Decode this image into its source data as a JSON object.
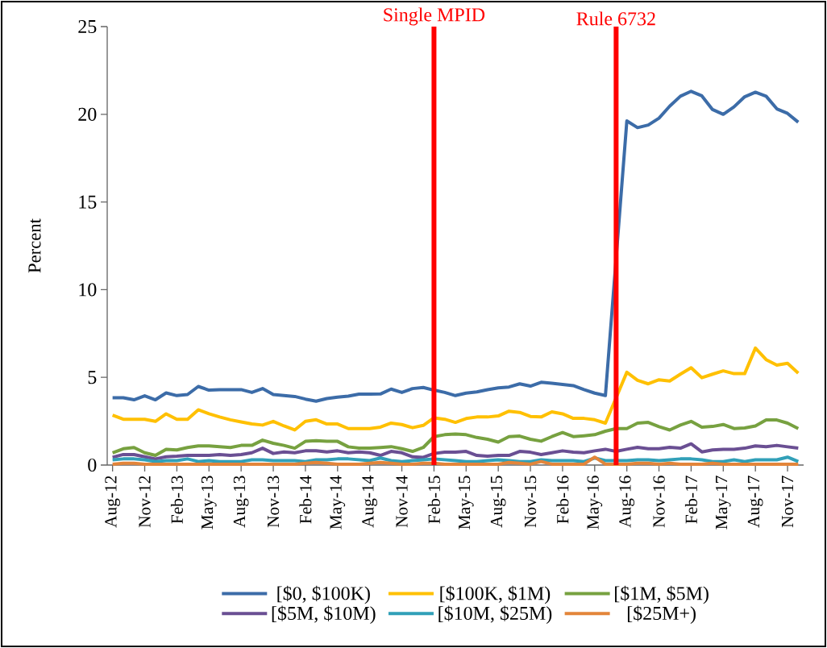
{
  "chart_data": {
    "type": "line",
    "ylabel": "Percent",
    "legend": "bottom",
    "line_style": "solid",
    "x": [
      "2012-08",
      "2012-09",
      "2012-10",
      "2012-11",
      "2012-12",
      "2013-01",
      "2013-02",
      "2013-03",
      "2013-04",
      "2013-05",
      "2013-06",
      "2013-07",
      "2013-08",
      "2013-09",
      "2013-10",
      "2013-11",
      "2013-12",
      "2014-01",
      "2014-02",
      "2014-03",
      "2014-04",
      "2014-05",
      "2014-06",
      "2014-07",
      "2014-08",
      "2014-09",
      "2014-10",
      "2014-11",
      "2014-12",
      "2015-01",
      "2015-02",
      "2015-03",
      "2015-04",
      "2015-05",
      "2015-06",
      "2015-07",
      "2015-08",
      "2015-09",
      "2015-10",
      "2015-11",
      "2015-12",
      "2016-01",
      "2016-02",
      "2016-03",
      "2016-04",
      "2016-05",
      "2016-06",
      "2016-07",
      "2016-08",
      "2016-09",
      "2016-10",
      "2016-11",
      "2016-12",
      "2017-01",
      "2017-02",
      "2017-03",
      "2017-04",
      "2017-05",
      "2017-06",
      "2017-07",
      "2017-08",
      "2017-09",
      "2017-10",
      "2017-11",
      "2017-12"
    ],
    "xlim": [
      "2012-07-16",
      "2017-12-16"
    ],
    "xticks": [
      {
        "value": "2012-08",
        "label": "Aug-12"
      },
      {
        "value": "2012-11",
        "label": "Nov-12"
      },
      {
        "value": "2013-02",
        "label": "Feb-13"
      },
      {
        "value": "2013-05",
        "label": "May-13"
      },
      {
        "value": "2013-08",
        "label": "Aug-13"
      },
      {
        "value": "2013-11",
        "label": "Nov-13"
      },
      {
        "value": "2014-02",
        "label": "Feb-14"
      },
      {
        "value": "2014-05",
        "label": "May-14"
      },
      {
        "value": "2014-08",
        "label": "Aug-14"
      },
      {
        "value": "2014-11",
        "label": "Nov-14"
      },
      {
        "value": "2015-02",
        "label": "Feb-15"
      },
      {
        "value": "2015-05",
        "label": "May-15"
      },
      {
        "value": "2015-08",
        "label": "Aug-15"
      },
      {
        "value": "2015-11",
        "label": "Nov-15"
      },
      {
        "value": "2016-02",
        "label": "Feb-16"
      },
      {
        "value": "2016-05",
        "label": "May-16"
      },
      {
        "value": "2016-08",
        "label": "Aug-16"
      },
      {
        "value": "2016-11",
        "label": "Nov-16"
      },
      {
        "value": "2017-02",
        "label": "Feb-17"
      },
      {
        "value": "2017-05",
        "label": "May-17"
      },
      {
        "value": "2017-08",
        "label": "Aug-17"
      },
      {
        "value": "2017-11",
        "label": "Nov-17"
      }
    ],
    "ylim": [
      0,
      25
    ],
    "yticks": [
      0,
      5,
      10,
      15,
      20,
      25
    ],
    "ref_lines": [
      {
        "axis": "x",
        "value": "2015-02",
        "label": "Single MPID",
        "color": "#ff0000"
      },
      {
        "axis": "x",
        "value": "2016-07",
        "label": "Rule 6732",
        "color": "#ff0000"
      }
    ],
    "series": [
      {
        "name": "[$0, $100K)",
        "color": "#3c6ca8",
        "values": [
          3.84,
          3.84,
          3.72,
          3.95,
          3.72,
          4.11,
          3.96,
          4.02,
          4.48,
          4.27,
          4.3,
          4.3,
          4.3,
          4.14,
          4.36,
          4.02,
          3.96,
          3.91,
          3.76,
          3.64,
          3.79,
          3.87,
          3.93,
          4.04,
          4.04,
          4.05,
          4.33,
          4.14,
          4.36,
          4.42,
          4.27,
          4.14,
          3.96,
          4.1,
          4.17,
          4.3,
          4.4,
          4.45,
          4.63,
          4.5,
          4.72,
          4.66,
          4.6,
          4.53,
          4.3,
          4.1,
          3.96,
          null,
          19.62,
          19.24,
          19.39,
          19.78,
          20.46,
          21.03,
          21.31,
          21.05,
          20.27,
          20.0,
          20.42,
          21.0,
          21.26,
          21.03,
          20.31,
          20.05,
          19.55
        ]
      },
      {
        "name": "[$100K, $1M)",
        "color": "#ffc000",
        "values": [
          2.84,
          2.61,
          2.61,
          2.61,
          2.49,
          2.92,
          2.61,
          2.61,
          3.15,
          2.92,
          2.74,
          2.58,
          2.46,
          2.34,
          2.28,
          2.49,
          2.23,
          2.0,
          2.49,
          2.58,
          2.34,
          2.34,
          2.08,
          2.08,
          2.08,
          2.16,
          2.39,
          2.31,
          2.13,
          2.26,
          2.69,
          2.61,
          2.43,
          2.65,
          2.74,
          2.74,
          2.8,
          3.07,
          3.0,
          2.77,
          2.74,
          3.03,
          2.92,
          2.66,
          2.66,
          2.58,
          2.39,
          null,
          5.29,
          4.83,
          4.63,
          4.86,
          4.79,
          5.18,
          5.55,
          4.98,
          5.18,
          5.37,
          5.21,
          5.21,
          6.67,
          6.01,
          5.7,
          5.8,
          5.24
        ]
      },
      {
        "name": "[$1M, $5M)",
        "color": "#77a140",
        "values": [
          0.7,
          0.93,
          1.0,
          0.7,
          0.55,
          0.9,
          0.86,
          1.0,
          1.09,
          1.09,
          1.05,
          1.0,
          1.12,
          1.12,
          1.42,
          1.24,
          1.12,
          0.96,
          1.35,
          1.39,
          1.35,
          1.35,
          1.04,
          0.96,
          0.96,
          1.0,
          1.05,
          0.93,
          0.78,
          1.0,
          1.62,
          1.73,
          1.77,
          1.73,
          1.57,
          1.47,
          1.31,
          1.62,
          1.65,
          1.47,
          1.36,
          1.62,
          1.85,
          1.62,
          1.67,
          1.73,
          1.93,
          2.08,
          2.08,
          2.39,
          2.43,
          2.19,
          2.0,
          2.28,
          2.49,
          2.16,
          2.2,
          2.31,
          2.08,
          2.11,
          2.23,
          2.57,
          2.57,
          2.39,
          2.08
        ]
      },
      {
        "name": "[$5M, $10M)",
        "color": "#6a4f93",
        "values": [
          0.44,
          0.6,
          0.6,
          0.47,
          0.35,
          0.47,
          0.5,
          0.55,
          0.55,
          0.55,
          0.6,
          0.55,
          0.6,
          0.7,
          0.96,
          0.66,
          0.75,
          0.7,
          0.81,
          0.81,
          0.75,
          0.81,
          0.7,
          0.75,
          0.7,
          0.55,
          0.78,
          0.7,
          0.47,
          0.44,
          0.66,
          0.73,
          0.73,
          0.78,
          0.55,
          0.5,
          0.55,
          0.55,
          0.78,
          0.73,
          0.6,
          0.7,
          0.81,
          0.73,
          0.7,
          0.81,
          0.9,
          0.78,
          0.9,
          1.01,
          0.93,
          0.93,
          1.01,
          0.96,
          1.21,
          0.75,
          0.86,
          0.9,
          0.9,
          0.96,
          1.09,
          1.05,
          1.12,
          1.04,
          0.96
        ]
      },
      {
        "name": "[$10M, $25M)",
        "color": "#31a0b8",
        "values": [
          0.3,
          0.35,
          0.35,
          0.3,
          0.2,
          0.25,
          0.25,
          0.35,
          0.2,
          0.25,
          0.2,
          0.2,
          0.2,
          0.3,
          0.3,
          0.25,
          0.25,
          0.25,
          0.2,
          0.3,
          0.3,
          0.35,
          0.35,
          0.3,
          0.25,
          0.4,
          0.25,
          0.2,
          0.25,
          0.3,
          0.35,
          0.3,
          0.25,
          0.2,
          0.2,
          0.25,
          0.3,
          0.25,
          0.2,
          0.2,
          0.3,
          0.25,
          0.25,
          0.25,
          0.2,
          0.4,
          0.25,
          0.25,
          0.25,
          0.3,
          0.3,
          0.25,
          0.3,
          0.35,
          0.35,
          0.3,
          0.2,
          0.2,
          0.3,
          0.2,
          0.3,
          0.3,
          0.3,
          0.45,
          0.2
        ]
      },
      {
        "name": "[$25M+)",
        "color": "#e3853a",
        "values": [
          0.05,
          0.1,
          0.1,
          0.05,
          0.05,
          0.05,
          0.05,
          0.05,
          0.05,
          0.05,
          0.05,
          0.05,
          0.05,
          0.05,
          0.05,
          0.05,
          0.05,
          0.05,
          0.1,
          0.15,
          0.1,
          0.05,
          0.05,
          0.05,
          0.1,
          0.15,
          0.1,
          0.05,
          0.05,
          0.1,
          0.1,
          0.05,
          0.05,
          0.05,
          0.05,
          0.05,
          0.05,
          0.15,
          0.1,
          0.05,
          0.2,
          0.05,
          0.05,
          0.05,
          0.05,
          0.45,
          0.05,
          0.05,
          0.05,
          0.1,
          0.1,
          0.05,
          0.1,
          0.05,
          0.05,
          0.05,
          0.1,
          0.05,
          0.05,
          0.05,
          0.05,
          0.05,
          0.05,
          0.05,
          0.05
        ]
      }
    ]
  }
}
